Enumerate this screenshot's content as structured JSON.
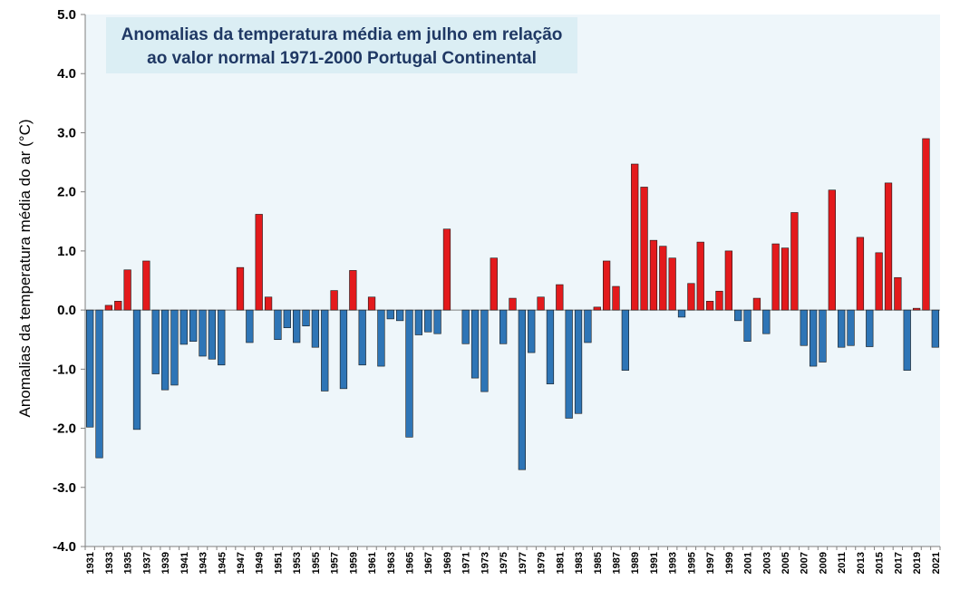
{
  "chart_data": {
    "type": "bar",
    "title_lines": [
      "Anomalias da temperatura média em julho em relação",
      "ao valor normal 1971-2000 Portugal Continental"
    ],
    "xlabel": "",
    "ylabel": "Anomalias da temperatura média do ar (°C)",
    "ylim": [
      -4.0,
      5.0
    ],
    "yticks": [
      "5.0",
      "4.0",
      "3.0",
      "2.0",
      "1.0",
      "0.0",
      "-1.0",
      "-2.0",
      "-3.0",
      "-4.0"
    ],
    "ytick_values": [
      5,
      4,
      3,
      2,
      1,
      0,
      -1,
      -2,
      -3,
      -4
    ],
    "x_tick_labels": [
      "1931",
      "1933",
      "1935",
      "1937",
      "1939",
      "1941",
      "1943",
      "1945",
      "1947",
      "1949",
      "1951",
      "1953",
      "1955",
      "1957",
      "1959",
      "1961",
      "1963",
      "1965",
      "1967",
      "1969",
      "1971",
      "1973",
      "1975",
      "1977",
      "1979",
      "1981",
      "1983",
      "1985",
      "1987",
      "1989",
      "1991",
      "1993",
      "1995",
      "1997",
      "1999",
      "2001",
      "2003",
      "2005",
      "2007",
      "2009",
      "2011",
      "2013",
      "2015",
      "2017",
      "2019",
      "2021"
    ],
    "grid": false,
    "colors": {
      "positive": "#e31a1c",
      "negative": "#2e75b6",
      "plot_bg": "#eef6fa",
      "title_bg": "#dbeef4"
    },
    "years": [
      1931,
      1932,
      1933,
      1934,
      1935,
      1936,
      1937,
      1938,
      1939,
      1940,
      1941,
      1942,
      1943,
      1944,
      1945,
      1946,
      1947,
      1948,
      1949,
      1950,
      1951,
      1952,
      1953,
      1954,
      1955,
      1956,
      1957,
      1958,
      1959,
      1960,
      1961,
      1962,
      1963,
      1964,
      1965,
      1966,
      1967,
      1968,
      1969,
      1970,
      1971,
      1972,
      1973,
      1974,
      1975,
      1976,
      1977,
      1978,
      1979,
      1980,
      1981,
      1982,
      1983,
      1984,
      1985,
      1986,
      1987,
      1988,
      1989,
      1990,
      1991,
      1992,
      1993,
      1994,
      1995,
      1996,
      1997,
      1998,
      1999,
      2000,
      2001,
      2002,
      2003,
      2004,
      2005,
      2006,
      2007,
      2008,
      2009,
      2010,
      2011,
      2012,
      2013,
      2014,
      2015,
      2016,
      2017,
      2018,
      2019,
      2020,
      2021
    ],
    "values": [
      -1.98,
      -2.5,
      0.08,
      0.15,
      0.68,
      -2.02,
      0.83,
      -1.08,
      -1.35,
      -1.27,
      -0.58,
      -0.53,
      -0.78,
      -0.83,
      -0.93,
      0.0,
      0.72,
      -0.55,
      1.62,
      0.22,
      -0.5,
      -0.3,
      -0.55,
      -0.27,
      -0.63,
      -1.37,
      0.33,
      -1.33,
      0.67,
      -0.93,
      0.22,
      -0.95,
      -0.15,
      -0.18,
      -2.15,
      -0.42,
      -0.37,
      -0.4,
      1.37,
      0.0,
      -0.57,
      -1.15,
      -1.38,
      0.88,
      -0.57,
      0.2,
      -2.7,
      -0.72,
      0.22,
      -1.25,
      0.43,
      -1.83,
      -1.75,
      -0.55,
      0.05,
      0.83,
      0.4,
      -1.02,
      2.47,
      2.08,
      1.18,
      1.08,
      0.88,
      -0.12,
      0.45,
      1.15,
      0.15,
      0.32,
      1.0,
      -0.18,
      -0.53,
      0.2,
      -0.4,
      1.12,
      1.05,
      1.65,
      -0.6,
      -0.95,
      -0.88,
      2.03,
      -0.63,
      -0.6,
      1.23,
      -0.62,
      0.97,
      2.15,
      0.55,
      -1.02,
      0.03,
      2.9,
      -0.63
    ]
  }
}
